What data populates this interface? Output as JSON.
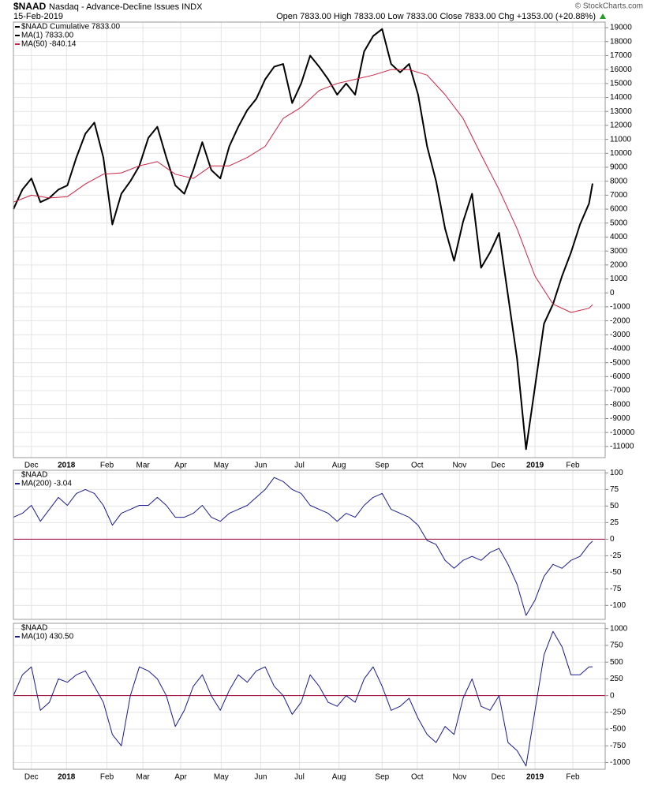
{
  "chart_data": [
    {
      "type": "line",
      "title": "$NAAD",
      "subtitle": "Nasdaq - Advance-Decline Issues INDX",
      "date": "15-Feb-2019",
      "quote": "Open 7833.00 High 7833.00 Low 7833.00 Close 7833.00 Chg +1353.00 (+20.88%)",
      "source": "© StockCharts.com",
      "label": "$NAAD Cumulative 7833.00",
      "grid": true,
      "xlim": [
        0,
        65.8
      ],
      "xticks": [
        {
          "value": 2.0,
          "label": "Dec"
        },
        {
          "value": 5.9,
          "label": "2018"
        },
        {
          "value": 10.4,
          "label": "Feb"
        },
        {
          "value": 14.4,
          "label": "Mar"
        },
        {
          "value": 18.6,
          "label": "Apr"
        },
        {
          "value": 23.1,
          "label": "May"
        },
        {
          "value": 27.5,
          "label": "Jun"
        },
        {
          "value": 31.8,
          "label": "Jul"
        },
        {
          "value": 36.2,
          "label": "Aug"
        },
        {
          "value": 41.0,
          "label": "Sep"
        },
        {
          "value": 44.9,
          "label": "Oct"
        },
        {
          "value": 49.6,
          "label": "Nov"
        },
        {
          "value": 53.9,
          "label": "Dec"
        },
        {
          "value": 58.0,
          "label": "2019"
        },
        {
          "value": 62.2,
          "label": "Feb"
        }
      ],
      "ylim": [
        -11800,
        19400
      ],
      "yticks": [
        -11000,
        -10000,
        -9000,
        -8000,
        -7000,
        -6000,
        -5000,
        -4000,
        -3000,
        -2000,
        -1000,
        0,
        1000,
        2000,
        3000,
        4000,
        5000,
        6000,
        7000,
        8000,
        9000,
        10000,
        11000,
        12000,
        13000,
        14000,
        15000,
        16000,
        17000,
        18000,
        19000
      ],
      "x": [
        0,
        1,
        2,
        3,
        4,
        5,
        6,
        7,
        8,
        9,
        10,
        11,
        12,
        13,
        14,
        15,
        16,
        17,
        18,
        19,
        20,
        21,
        22,
        23,
        24,
        25,
        26,
        27,
        28,
        29,
        30,
        31,
        32,
        33,
        34,
        35,
        36,
        37,
        38,
        39,
        40,
        41,
        42,
        43,
        44,
        45,
        46,
        47,
        48,
        49,
        50,
        51,
        52,
        53,
        54,
        55,
        56,
        57,
        58,
        59,
        60,
        61,
        62,
        63,
        64,
        64.4
      ],
      "series": [
        {
          "name": "MA(1) 7833.00",
          "color": "#000000",
          "width": 2,
          "values": [
            6000,
            7400,
            8200,
            6500,
            6800,
            7400,
            7700,
            9700,
            11400,
            12200,
            9700,
            4900,
            7100,
            8000,
            9100,
            11100,
            11900,
            9700,
            7700,
            7100,
            8800,
            10800,
            8800,
            8200,
            10500,
            11900,
            13100,
            13900,
            15300,
            16200,
            16400,
            13600,
            15000,
            17000,
            16200,
            15300,
            14200,
            15000,
            14200,
            17300,
            18400,
            18900,
            16400,
            15800,
            16400,
            14200,
            10500,
            8000,
            4600,
            2300,
            5100,
            7100,
            1800,
            2900,
            4300,
            -200,
            -4700,
            -11200,
            -6700,
            -2200,
            -800,
            1200,
            2900,
            4900,
            6400,
            7833
          ]
        },
        {
          "name": "MA(50) -840.14",
          "color": "#cc2244",
          "width": 1,
          "x": [
            0,
            2,
            4,
            6,
            8,
            10,
            12,
            14,
            16,
            18,
            20,
            22,
            24,
            26,
            28,
            30,
            32,
            34,
            36,
            38,
            40,
            42,
            44,
            46,
            48,
            50,
            52,
            54,
            56,
            58,
            60,
            62,
            64,
            64.4
          ],
          "values": [
            6500,
            7000,
            6800,
            6900,
            7800,
            8500,
            8600,
            9100,
            9400,
            8500,
            8200,
            9100,
            9100,
            9700,
            10500,
            12500,
            13300,
            14500,
            15000,
            15300,
            15600,
            16000,
            16000,
            15600,
            14200,
            12500,
            9900,
            7400,
            4600,
            1200,
            -800,
            -1400,
            -1100,
            -840.14
          ]
        }
      ]
    },
    {
      "type": "line",
      "label": "$NAAD",
      "grid": true,
      "xtick_labels": false,
      "reference_line": 0,
      "reference_color": "#990033",
      "xlim": [
        0,
        65.8
      ],
      "xticks": [
        2.0,
        5.9,
        10.4,
        14.4,
        18.6,
        23.1,
        27.5,
        31.8,
        36.2,
        41.0,
        44.9,
        49.6,
        53.9,
        58.0,
        62.2
      ],
      "ylim": [
        -121,
        104
      ],
      "yticks": [
        -100,
        -75,
        -50,
        -25,
        0,
        25,
        50,
        75,
        100
      ],
      "x": [
        0,
        1,
        2,
        3,
        4,
        5,
        6,
        7,
        8,
        9,
        10,
        11,
        12,
        13,
        14,
        15,
        16,
        17,
        18,
        19,
        20,
        21,
        22,
        23,
        24,
        25,
        26,
        27,
        28,
        29,
        30,
        31,
        32,
        33,
        34,
        35,
        36,
        37,
        38,
        39,
        40,
        41,
        42,
        43,
        44,
        45,
        46,
        47,
        48,
        49,
        50,
        51,
        52,
        53,
        54,
        55,
        56,
        57,
        58,
        59,
        60,
        61,
        62,
        63,
        64,
        64.4
      ],
      "series": [
        {
          "name": "MA(200) -3.04",
          "color": "#1a1a8c",
          "width": 1,
          "values": [
            33,
            39,
            51,
            27,
            45,
            63,
            51,
            69,
            75,
            69,
            51,
            21,
            39,
            45,
            51,
            51,
            63,
            51,
            33,
            33,
            39,
            51,
            33,
            27,
            39,
            45,
            51,
            63,
            75,
            93,
            87,
            75,
            69,
            51,
            45,
            39,
            27,
            39,
            33,
            51,
            63,
            69,
            45,
            39,
            33,
            21,
            -2,
            -8,
            -32,
            -44,
            -32,
            -26,
            -32,
            -20,
            -14,
            -38,
            -68,
            -115,
            -92,
            -56,
            -38,
            -44,
            -32,
            -26,
            -8,
            -3.04
          ]
        }
      ]
    },
    {
      "type": "line",
      "label": "$NAAD",
      "grid": true,
      "reference_line": 0,
      "reference_color": "#990033",
      "xlim": [
        0,
        65.8
      ],
      "xticks": [
        {
          "value": 2.0,
          "label": "Dec"
        },
        {
          "value": 5.9,
          "label": "2018"
        },
        {
          "value": 10.4,
          "label": "Feb"
        },
        {
          "value": 14.4,
          "label": "Mar"
        },
        {
          "value": 18.6,
          "label": "Apr"
        },
        {
          "value": 23.1,
          "label": "May"
        },
        {
          "value": 27.5,
          "label": "Jun"
        },
        {
          "value": 31.8,
          "label": "Jul"
        },
        {
          "value": 36.2,
          "label": "Aug"
        },
        {
          "value": 41.0,
          "label": "Sep"
        },
        {
          "value": 44.9,
          "label": "Oct"
        },
        {
          "value": 49.6,
          "label": "Nov"
        },
        {
          "value": 53.9,
          "label": "Dec"
        },
        {
          "value": 58.0,
          "label": "2019"
        },
        {
          "value": 62.2,
          "label": "Feb"
        }
      ],
      "ylim": [
        -1100,
        1080
      ],
      "yticks": [
        -1000,
        -750,
        -500,
        -250,
        0,
        250,
        500,
        750,
        1000
      ],
      "x": [
        0,
        1,
        2,
        3,
        4,
        5,
        6,
        7,
        8,
        9,
        10,
        11,
        12,
        13,
        14,
        15,
        16,
        17,
        18,
        19,
        20,
        21,
        22,
        23,
        24,
        25,
        26,
        27,
        28,
        29,
        30,
        31,
        32,
        33,
        34,
        35,
        36,
        37,
        38,
        39,
        40,
        41,
        42,
        43,
        44,
        45,
        46,
        47,
        48,
        49,
        50,
        51,
        52,
        53,
        54,
        55,
        56,
        57,
        58,
        59,
        60,
        61,
        62,
        63,
        64,
        64.4
      ],
      "series": [
        {
          "name": "MA(10) 430.50",
          "color": "#1a1a8c",
          "width": 1,
          "values": [
            0,
            310,
            430,
            -220,
            -100,
            250,
            200,
            310,
            370,
            140,
            -100,
            -580,
            -750,
            0,
            430,
            370,
            250,
            0,
            -460,
            -220,
            140,
            310,
            0,
            -220,
            80,
            310,
            200,
            370,
            430,
            140,
            0,
            -280,
            -100,
            310,
            140,
            -100,
            -160,
            0,
            -100,
            250,
            430,
            140,
            -220,
            -160,
            -40,
            -340,
            -580,
            -700,
            -460,
            -580,
            -40,
            250,
            -160,
            -220,
            0,
            -700,
            -820,
            -1050,
            -220,
            610,
            960,
            730,
            310,
            310,
            430,
            430.5
          ]
        }
      ]
    }
  ]
}
